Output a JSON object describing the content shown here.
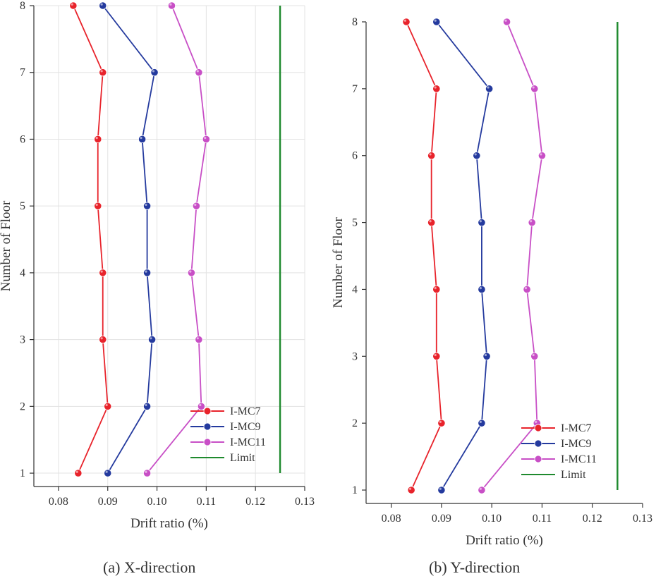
{
  "chart_data": [
    {
      "type": "line",
      "caption": "(a) X-direction",
      "xlabel": "Drift ratio (%)",
      "ylabel": "Number of Floor",
      "xlim": [
        0.075,
        0.13
      ],
      "ylim": [
        0.8,
        8.0
      ],
      "xticks": [
        "0.08",
        "0.09",
        "0.10",
        "0.11",
        "0.12",
        "0.13"
      ],
      "yticks": [
        "1",
        "2",
        "3",
        "4",
        "5",
        "6",
        "7",
        "8"
      ],
      "grid": true,
      "legend_position": "bottom-right",
      "series": [
        {
          "name": "I-MC7",
          "color": "#e8232b",
          "x": [
            0.084,
            0.09,
            0.089,
            0.089,
            0.088,
            0.088,
            0.089,
            0.083
          ],
          "y": [
            1,
            2,
            3,
            4,
            5,
            6,
            7,
            8
          ]
        },
        {
          "name": "I-MC9",
          "color": "#243a9e",
          "x": [
            0.09,
            0.098,
            0.099,
            0.098,
            0.098,
            0.097,
            0.0995,
            0.089
          ],
          "y": [
            1,
            2,
            3,
            4,
            5,
            6,
            7,
            8
          ]
        },
        {
          "name": "I-MC11",
          "color": "#c84fc6",
          "x": [
            0.098,
            0.109,
            0.1085,
            0.107,
            0.108,
            0.11,
            0.1085,
            0.103
          ],
          "y": [
            1,
            2,
            3,
            4,
            5,
            6,
            7,
            8
          ]
        },
        {
          "name": "Limit",
          "color": "#1f8a2e",
          "x": [
            0.125,
            0.125
          ],
          "y": [
            1,
            8
          ]
        }
      ]
    },
    {
      "type": "line",
      "caption": "(b) Y-direction",
      "xlabel": "Drift ratio (%)",
      "ylabel": "Number of Floor",
      "xlim": [
        0.075,
        0.13
      ],
      "ylim": [
        0.8,
        8.0
      ],
      "xticks": [
        "0.08",
        "0.09",
        "0.10",
        "0.11",
        "0.12",
        "0.13"
      ],
      "yticks": [
        "1",
        "2",
        "3",
        "4",
        "5",
        "6",
        "7",
        "8"
      ],
      "grid": false,
      "legend_position": "bottom-right",
      "series": [
        {
          "name": "I-MC7",
          "color": "#e8232b",
          "x": [
            0.084,
            0.09,
            0.089,
            0.089,
            0.088,
            0.088,
            0.089,
            0.083
          ],
          "y": [
            1,
            2,
            3,
            4,
            5,
            6,
            7,
            8
          ]
        },
        {
          "name": "I-MC9",
          "color": "#243a9e",
          "x": [
            0.09,
            0.098,
            0.099,
            0.098,
            0.098,
            0.097,
            0.0995,
            0.089
          ],
          "y": [
            1,
            2,
            3,
            4,
            5,
            6,
            7,
            8
          ]
        },
        {
          "name": "I-MC11",
          "color": "#c84fc6",
          "x": [
            0.098,
            0.109,
            0.1085,
            0.107,
            0.108,
            0.11,
            0.1085,
            0.103
          ],
          "y": [
            1,
            2,
            3,
            4,
            5,
            6,
            7,
            8
          ]
        },
        {
          "name": "Limit",
          "color": "#1f8a2e",
          "x": [
            0.125,
            0.125
          ],
          "y": [
            1,
            8
          ]
        }
      ]
    }
  ]
}
